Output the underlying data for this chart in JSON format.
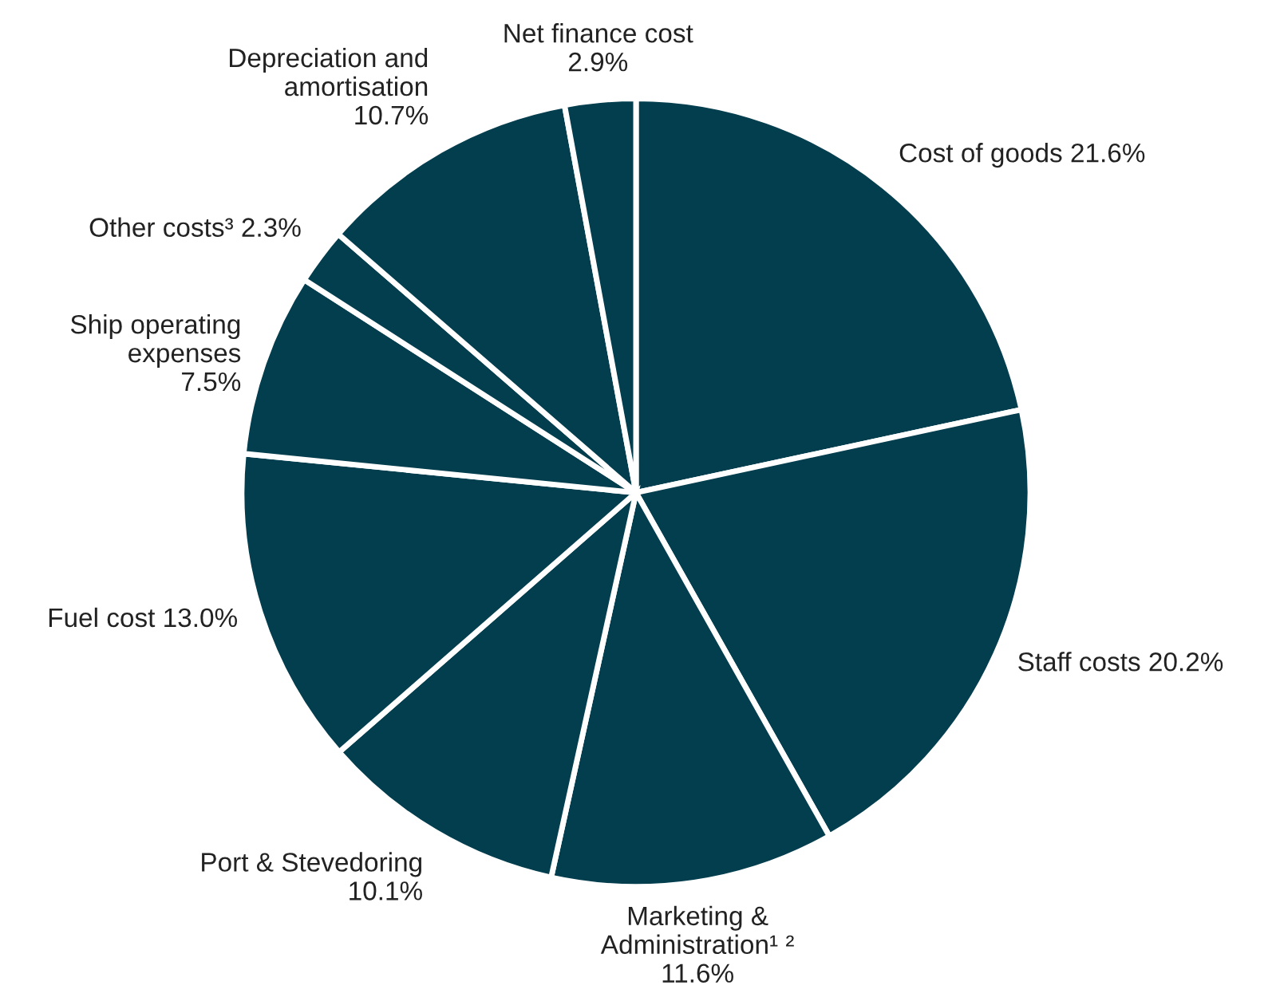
{
  "chart_data": {
    "type": "pie",
    "categories": [
      "Cost of goods",
      "Staff costs",
      "Marketing &\nAdministration¹ ²",
      "Port & Stevedoring",
      "Fuel cost",
      "Ship operating\nexpenses",
      "Other costs³",
      "Depreciation and\namortisation",
      "Net finance cost"
    ],
    "values": [
      21.6,
      20.2,
      11.6,
      10.1,
      13.0,
      7.5,
      2.3,
      10.7,
      2.9
    ],
    "value_labels": [
      "21.6%",
      "20.2%",
      "11.6%",
      "10.1%",
      "13.0%",
      "7.5%",
      "2.3%",
      "10.7%",
      "2.9%"
    ],
    "colors": [
      "#033e4e",
      "#033e4e",
      "#033e4e",
      "#033e4e",
      "#033e4e",
      "#033e4e",
      "#033e4e",
      "#033e4e",
      "#033e4e"
    ],
    "legend": false
  }
}
